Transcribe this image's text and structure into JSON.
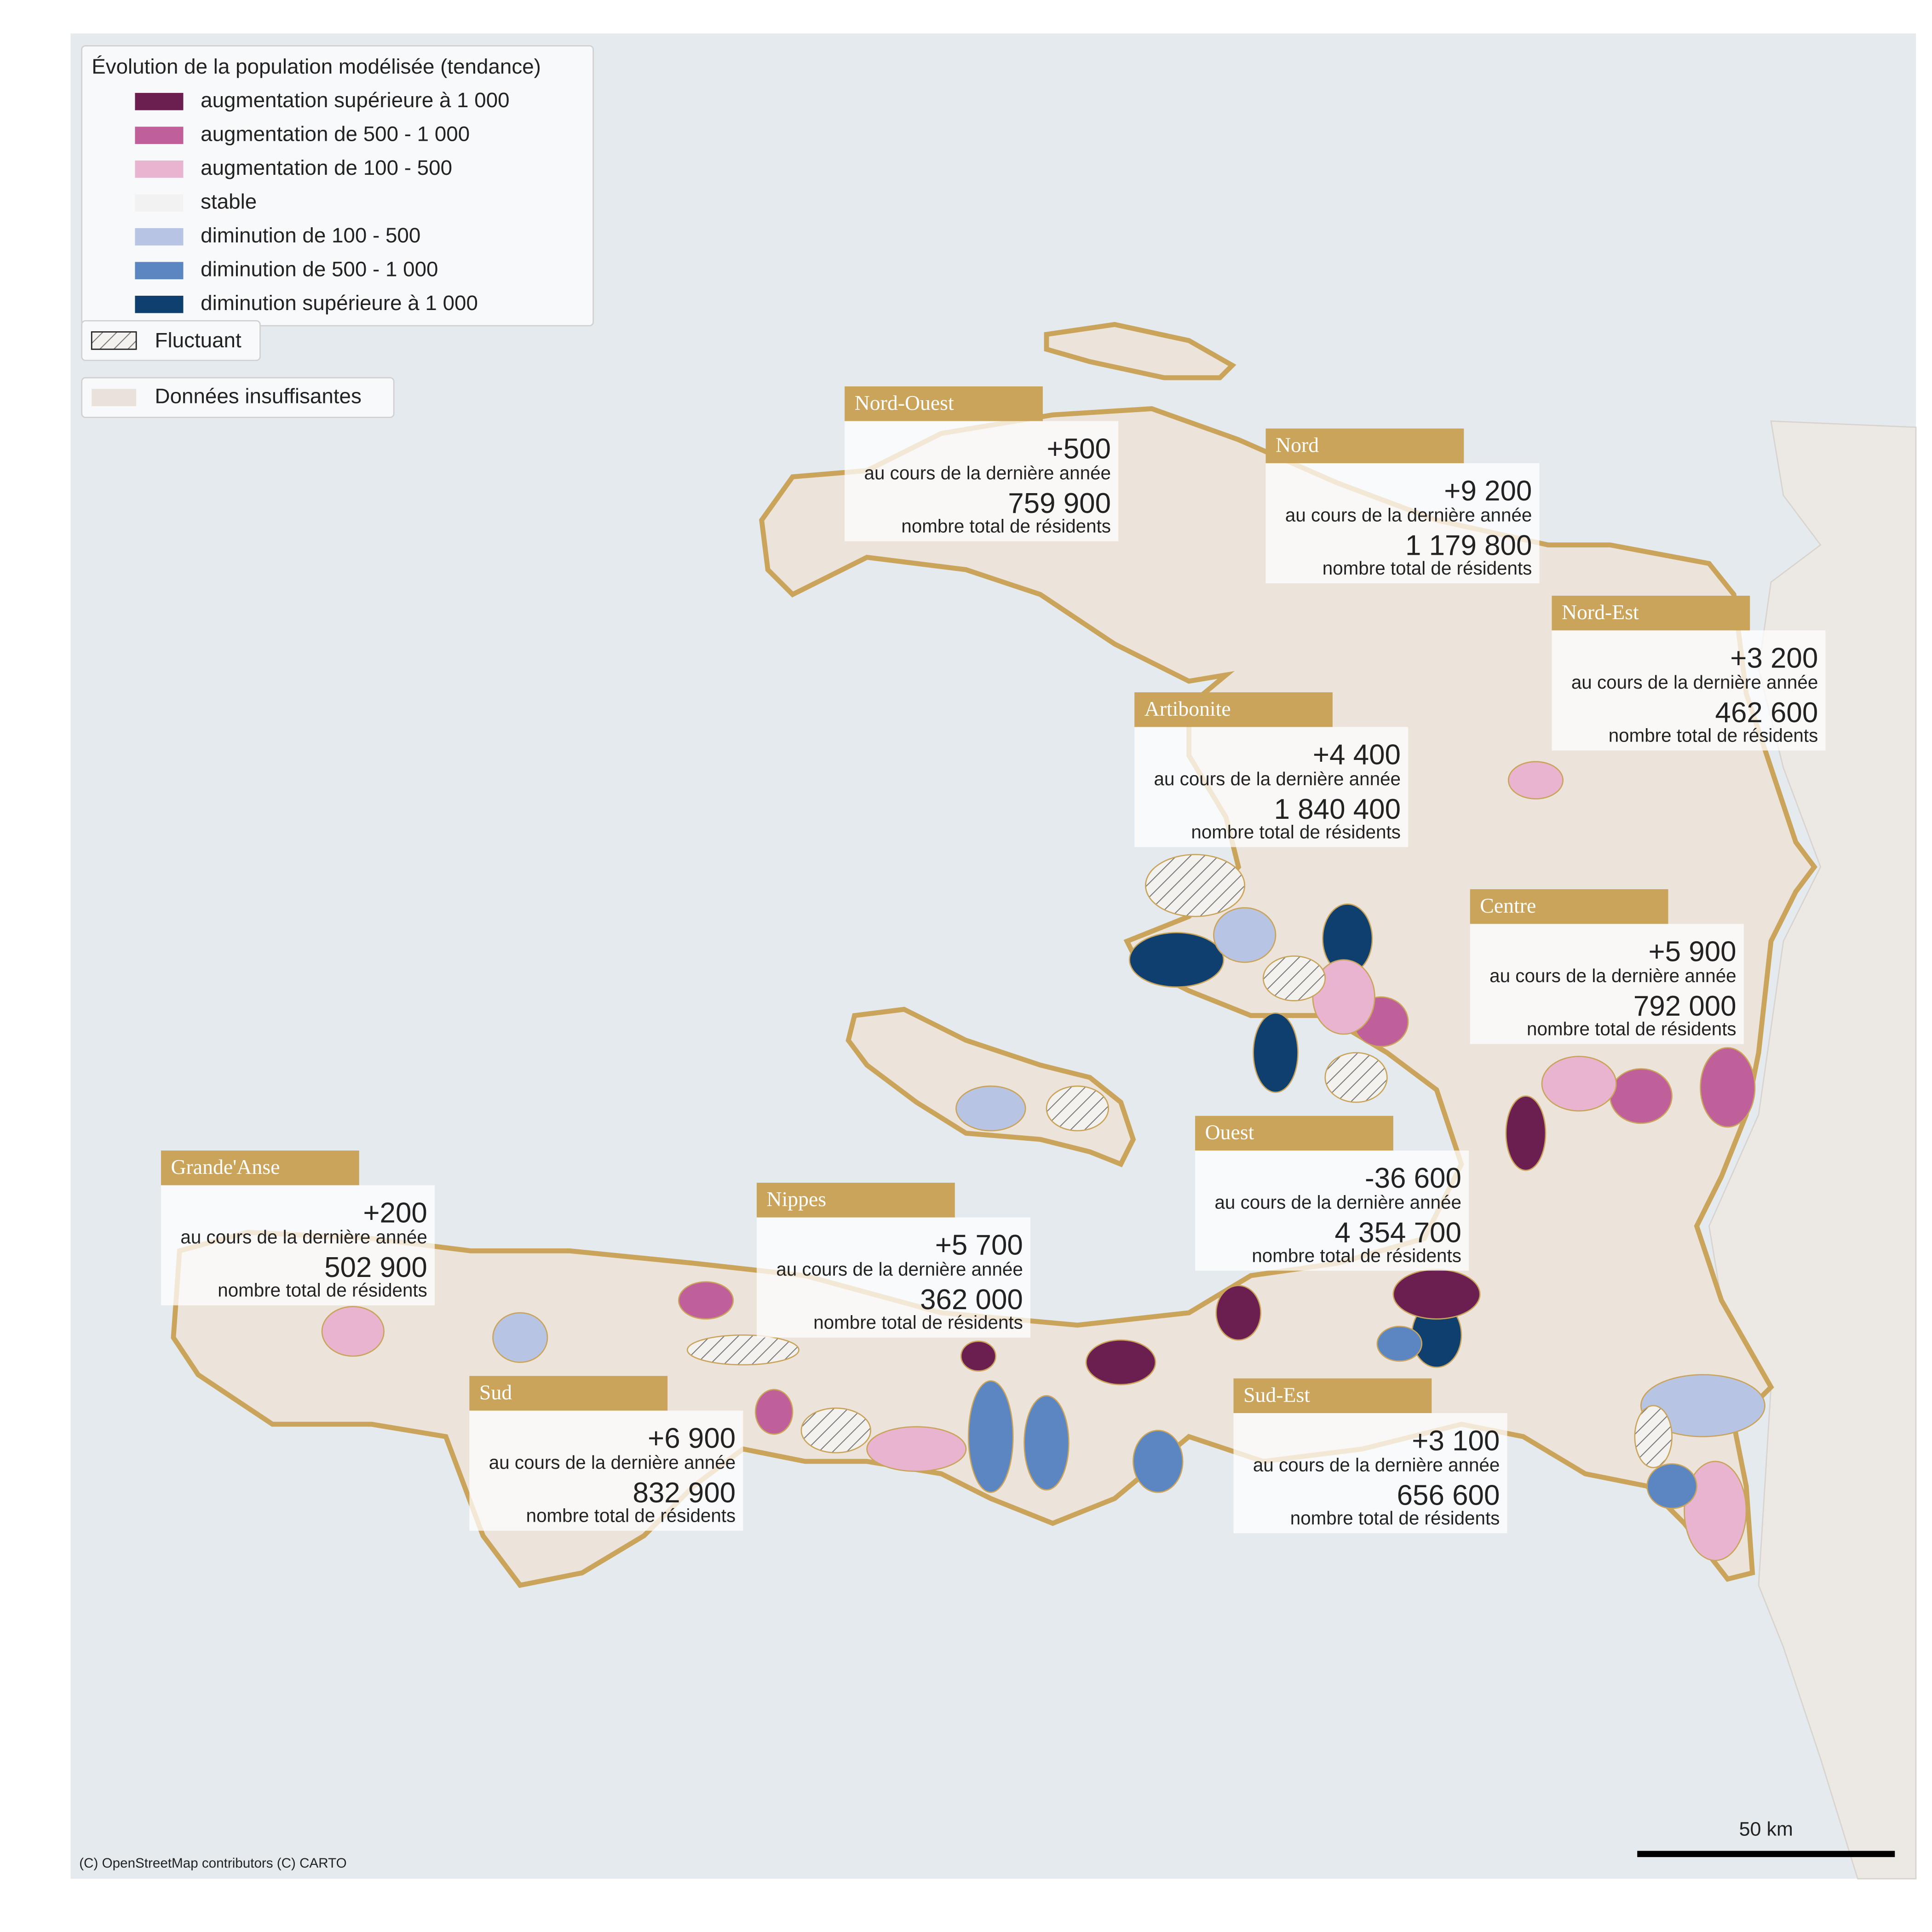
{
  "legend": {
    "title": "Évolution de la population modélisée (tendance)",
    "items": [
      {
        "label": "augmentation supérieure à 1 000",
        "color": "#6b1f50"
      },
      {
        "label": "augmentation de 500 - 1 000",
        "color": "#c0609a"
      },
      {
        "label": "augmentation de 100 - 500",
        "color": "#e8b4cf"
      },
      {
        "label": "stable",
        "color": "#f2f2f2"
      },
      {
        "label": "diminution de 100 - 500",
        "color": "#b7c4e4"
      },
      {
        "label": "diminution de 500 - 1 000",
        "color": "#5b86c2"
      },
      {
        "label": "diminution supérieure à 1 000",
        "color": "#0e3f6e"
      }
    ],
    "fluctuant": "Fluctuant",
    "insufficient": {
      "label": "Données insuffisantes",
      "color": "#e8e2da"
    }
  },
  "captions": {
    "change": "au cours de la dernière année",
    "total": "nombre total de résidents"
  },
  "regions": [
    {
      "name": "Nord-Ouest",
      "change": "+500",
      "total": "759 900"
    },
    {
      "name": "Nord",
      "change": "+9 200",
      "total": "1 179 800"
    },
    {
      "name": "Nord-Est",
      "change": "+3 200",
      "total": "462 600"
    },
    {
      "name": "Artibonite",
      "change": "+4 400",
      "total": "1 840 400"
    },
    {
      "name": "Centre",
      "change": "+5 900",
      "total": "792 000"
    },
    {
      "name": "Ouest",
      "change": "-36 600",
      "total": "4 354 700"
    },
    {
      "name": "Grande'Anse",
      "change": "+200",
      "total": "502 900"
    },
    {
      "name": "Nippes",
      "change": "+5 700",
      "total": "362 000"
    },
    {
      "name": "Sud",
      "change": "+6 900",
      "total": "832 900"
    },
    {
      "name": "Sud-Est",
      "change": "+3 100",
      "total": "656 600"
    }
  ],
  "scale": "50 km",
  "attribution": "(C) OpenStreetMap contributors (C) CARTO"
}
